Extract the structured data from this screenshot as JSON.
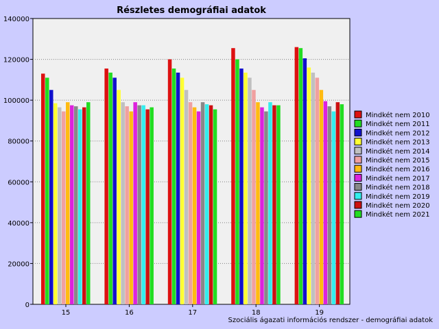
{
  "chart_data": {
    "type": "bar",
    "title": "Részletes demográfiai adatok",
    "xlabel": "",
    "ylabel": "",
    "categories": [
      "15",
      "16",
      "17",
      "18",
      "19"
    ],
    "ylim": [
      0,
      140000
    ],
    "yticks": [
      0,
      20000,
      40000,
      60000,
      80000,
      100000,
      120000,
      140000
    ],
    "grid": true,
    "legend_position": "right",
    "series": [
      {
        "name": "Mindkét nem 2010",
        "color": "#dd1111",
        "values": [
          113000,
          115500,
          120000,
          125500,
          126000
        ]
      },
      {
        "name": "Mindkét nem 2011",
        "color": "#22dd22",
        "values": [
          111000,
          113500,
          115500,
          120000,
          125500
        ]
      },
      {
        "name": "Mindkét nem 2012",
        "color": "#1111cc",
        "values": [
          105000,
          111000,
          113500,
          115500,
          120500
        ]
      },
      {
        "name": "Mindkét nem 2013",
        "color": "#ffff33",
        "values": [
          98500,
          105000,
          111000,
          113500,
          116000
        ]
      },
      {
        "name": "Mindkét nem 2014",
        "color": "#c0c0c0",
        "values": [
          96500,
          99000,
          105000,
          111000,
          113500
        ]
      },
      {
        "name": "Mindkét nem 2015",
        "color": "#f0a0a0",
        "values": [
          94500,
          97000,
          99000,
          105000,
          111000
        ]
      },
      {
        "name": "Mindkét nem 2016",
        "color": "#ffbb11",
        "values": [
          99000,
          94500,
          96500,
          99000,
          105000
        ]
      },
      {
        "name": "Mindkét nem 2017",
        "color": "#dd22dd",
        "values": [
          97500,
          99000,
          94500,
          96500,
          99500
        ]
      },
      {
        "name": "Mindkét nem 2018",
        "color": "#888888",
        "values": [
          97000,
          97500,
          99000,
          94500,
          97000
        ]
      },
      {
        "name": "Mindkét nem 2019",
        "color": "#33eeee",
        "values": [
          95500,
          97500,
          98000,
          99000,
          94500
        ]
      },
      {
        "name": "Mindkét nem 2020",
        "color": "#cc1111",
        "values": [
          96500,
          95500,
          97500,
          97500,
          99000
        ]
      },
      {
        "name": "Mindkét nem 2021",
        "color": "#22dd22",
        "values": [
          99000,
          96500,
          95500,
          97500,
          98000
        ]
      }
    ],
    "source_note": "Szociális ágazati információs rendszer - demográfiai adatok"
  }
}
